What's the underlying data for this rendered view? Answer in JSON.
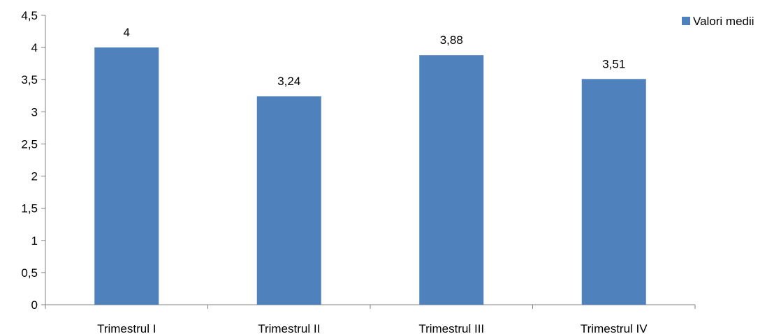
{
  "chart_data": {
    "type": "bar",
    "categories": [
      "Trimestrul I",
      "Trimestrul II",
      "Trimestrul III",
      "Trimestrul IV"
    ],
    "series": [
      {
        "name": "Valori medii",
        "values": [
          4,
          3.24,
          3.88,
          3.51
        ],
        "labels": [
          "4",
          "3,24",
          "3,88",
          "3,51"
        ],
        "color": "#4F81BD"
      }
    ],
    "ylim": [
      0,
      4.5
    ],
    "yticks": [
      0,
      0.5,
      1,
      1.5,
      2,
      2.5,
      3,
      3.5,
      4,
      4.5
    ],
    "ytick_labels": [
      "0",
      "0,5",
      "1",
      "1,5",
      "2",
      "2,5",
      "3",
      "3,5",
      "4",
      "4,5"
    ],
    "grid": false,
    "legend": {
      "position": "top-right",
      "label": "Valori medii",
      "color": "#4F81BD"
    },
    "title": "",
    "xlabel": "",
    "ylabel": ""
  }
}
